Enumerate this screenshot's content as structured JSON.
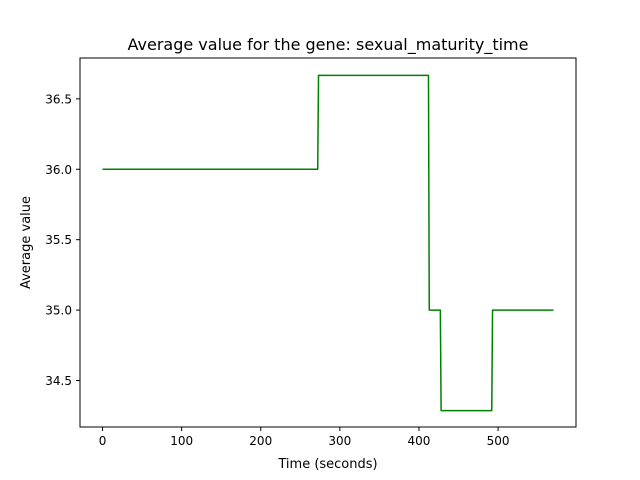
{
  "chart_data": {
    "type": "line",
    "title": "Average value for the gene: sexual_maturity_time",
    "xlabel": "Time (seconds)",
    "ylabel": "Average value",
    "xlim": [
      -28.5,
      598.5
    ],
    "ylim": [
      34.17,
      36.79
    ],
    "xticks": [
      0,
      100,
      200,
      300,
      400,
      500
    ],
    "yticks": [
      34.5,
      35.0,
      35.5,
      36.0,
      36.5
    ],
    "xtick_labels": [
      "0",
      "100",
      "200",
      "300",
      "400",
      "500"
    ],
    "ytick_labels": [
      "34.5",
      "35.0",
      "35.5",
      "36.0",
      "36.5"
    ],
    "grid": false,
    "legend": "none",
    "series": [
      {
        "color": "#008000",
        "x": [
          0,
          272,
          273,
          412,
          413,
          427,
          428,
          492,
          493,
          570
        ],
        "y": [
          36.0,
          36.0,
          36.667,
          36.667,
          35.0,
          35.0,
          34.286,
          34.286,
          35.0,
          35.0
        ]
      }
    ]
  }
}
